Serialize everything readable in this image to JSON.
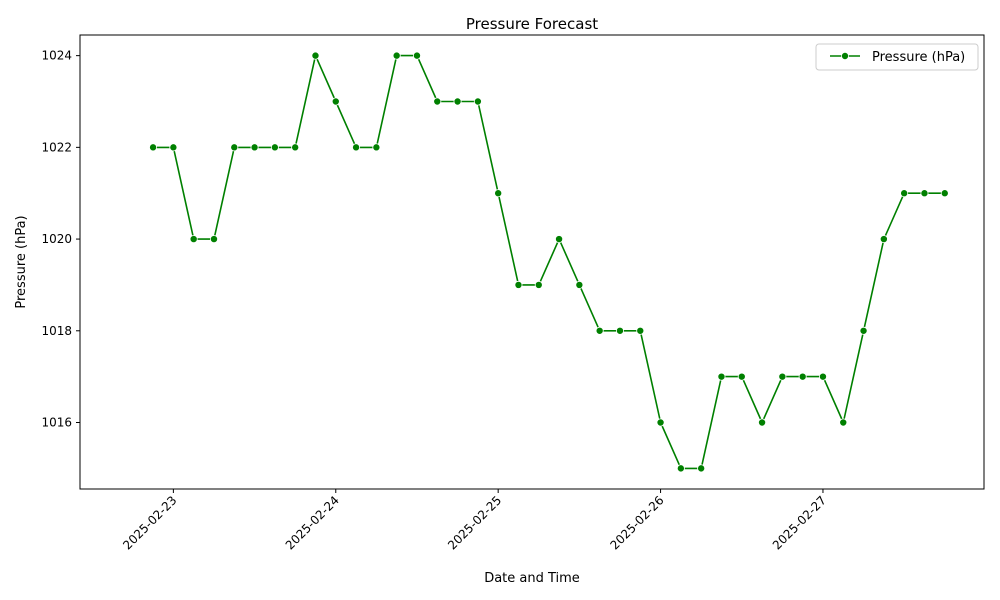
{
  "chart_data": {
    "type": "line",
    "title": "Pressure Forecast",
    "xlabel": "Date and Time",
    "ylabel": "Pressure (hPa)",
    "x_ticks": [
      "2025-02-23",
      "2025-02-24",
      "2025-02-25",
      "2025-02-26",
      "2025-02-27"
    ],
    "y_ticks": [
      1016,
      1018,
      1020,
      1022,
      1024
    ],
    "xlim": [
      "2025-02-22 10:12",
      "2025-02-27 23:48"
    ],
    "ylim": [
      1014.55,
      1024.45
    ],
    "grid": false,
    "legend_position": "top-right",
    "color": "#008000",
    "marker": "circle",
    "series": [
      {
        "name": "Pressure (hPa)",
        "x": [
          "2025-02-22 21:00",
          "2025-02-23 00:00",
          "2025-02-23 03:00",
          "2025-02-23 06:00",
          "2025-02-23 09:00",
          "2025-02-23 12:00",
          "2025-02-23 15:00",
          "2025-02-23 18:00",
          "2025-02-23 21:00",
          "2025-02-24 00:00",
          "2025-02-24 03:00",
          "2025-02-24 06:00",
          "2025-02-24 09:00",
          "2025-02-24 12:00",
          "2025-02-24 15:00",
          "2025-02-24 18:00",
          "2025-02-24 21:00",
          "2025-02-25 00:00",
          "2025-02-25 03:00",
          "2025-02-25 06:00",
          "2025-02-25 09:00",
          "2025-02-25 12:00",
          "2025-02-25 15:00",
          "2025-02-25 18:00",
          "2025-02-25 21:00",
          "2025-02-26 00:00",
          "2025-02-26 03:00",
          "2025-02-26 06:00",
          "2025-02-26 09:00",
          "2025-02-26 12:00",
          "2025-02-26 15:00",
          "2025-02-26 18:00",
          "2025-02-26 21:00",
          "2025-02-27 00:00",
          "2025-02-27 03:00",
          "2025-02-27 06:00",
          "2025-02-27 09:00",
          "2025-02-27 12:00",
          "2025-02-27 15:00",
          "2025-02-27 18:00"
        ],
        "values": [
          1022,
          1022,
          1020,
          1020,
          1022,
          1022,
          1022,
          1022,
          1024,
          1023,
          1022,
          1022,
          1024,
          1024,
          1023,
          1023,
          1023,
          1021,
          1019,
          1019,
          1020,
          1019,
          1018,
          1018,
          1018,
          1016,
          1015,
          1015,
          1017,
          1017,
          1016,
          1017,
          1017,
          1017,
          1016,
          1018,
          1020,
          1021,
          1021,
          1021
        ]
      }
    ]
  }
}
